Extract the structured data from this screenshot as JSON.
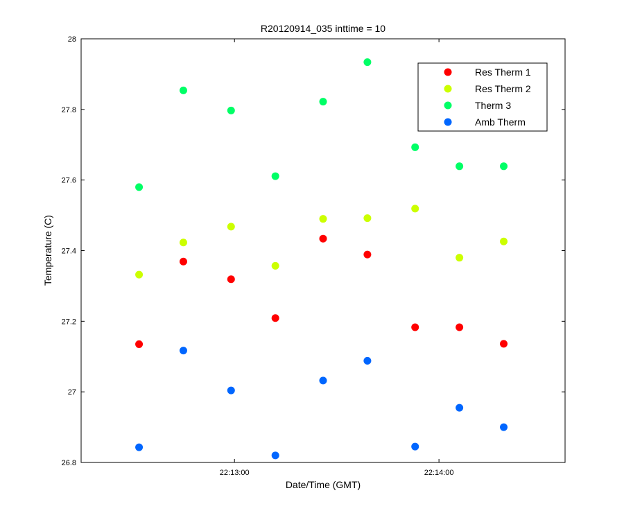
{
  "chart_data": {
    "type": "scatter",
    "title": "R20120914_035 inttime = 10",
    "xlabel": "Date/Time (GMT)",
    "ylabel": "Temperature (C)",
    "xlim": [
      "22:12:15",
      "22:14:37"
    ],
    "ylim": [
      26.8,
      28.0
    ],
    "yticks": [
      26.8,
      27,
      27.2,
      27.4,
      27.6,
      27.8,
      28
    ],
    "ytick_labels": [
      "26.8",
      "27",
      "27.2",
      "27.4",
      "27.6",
      "27.8",
      "28"
    ],
    "xticks": [
      "22:13:00",
      "22:14:00"
    ],
    "xtick_labels": [
      "22:13:00",
      "22:14:00"
    ],
    "grid": false,
    "legend_position": "top-right",
    "x": [
      "22:12:32",
      "22:12:45",
      "22:12:59",
      "22:13:12",
      "22:13:26",
      "22:13:39",
      "22:13:53",
      "22:14:06",
      "22:14:19"
    ],
    "series": [
      {
        "name": "Res Therm 1",
        "color": "#ff0000",
        "x": [
          "22:12:32",
          "22:12:45",
          "22:12:59",
          "22:13:12",
          "22:13:26",
          "22:13:39",
          "22:13:53",
          "22:14:06",
          "22:14:19"
        ],
        "values": [
          27.135,
          27.369,
          27.319,
          27.209,
          27.434,
          27.389,
          27.183,
          27.183,
          27.136
        ]
      },
      {
        "name": "Res Therm 2",
        "color": "#ccff00",
        "x": [
          "22:12:32",
          "22:12:45",
          "22:12:59",
          "22:13:12",
          "22:13:26",
          "22:13:39",
          "22:13:53",
          "22:14:06",
          "22:14:19"
        ],
        "values": [
          27.332,
          27.423,
          27.468,
          27.357,
          27.49,
          27.492,
          27.519,
          27.38,
          27.426
        ]
      },
      {
        "name": "Therm 3",
        "color": "#00ff66",
        "x": [
          "22:12:32",
          "22:12:45",
          "22:12:59",
          "22:13:12",
          "22:13:26",
          "22:13:39",
          "22:13:53",
          "22:14:06",
          "22:14:19"
        ],
        "values": [
          27.58,
          27.854,
          27.797,
          27.611,
          27.822,
          27.934,
          27.693,
          27.639,
          27.639
        ]
      },
      {
        "name": "Amb Therm",
        "color": "#0066ff",
        "x": [
          "22:12:32",
          "22:12:45",
          "22:12:59",
          "22:13:12",
          "22:13:26",
          "22:13:39",
          "22:13:53",
          "22:14:06",
          "22:14:19"
        ],
        "values": [
          26.843,
          27.117,
          27.004,
          26.82,
          27.032,
          27.088,
          26.845,
          26.955,
          26.9
        ]
      }
    ]
  }
}
